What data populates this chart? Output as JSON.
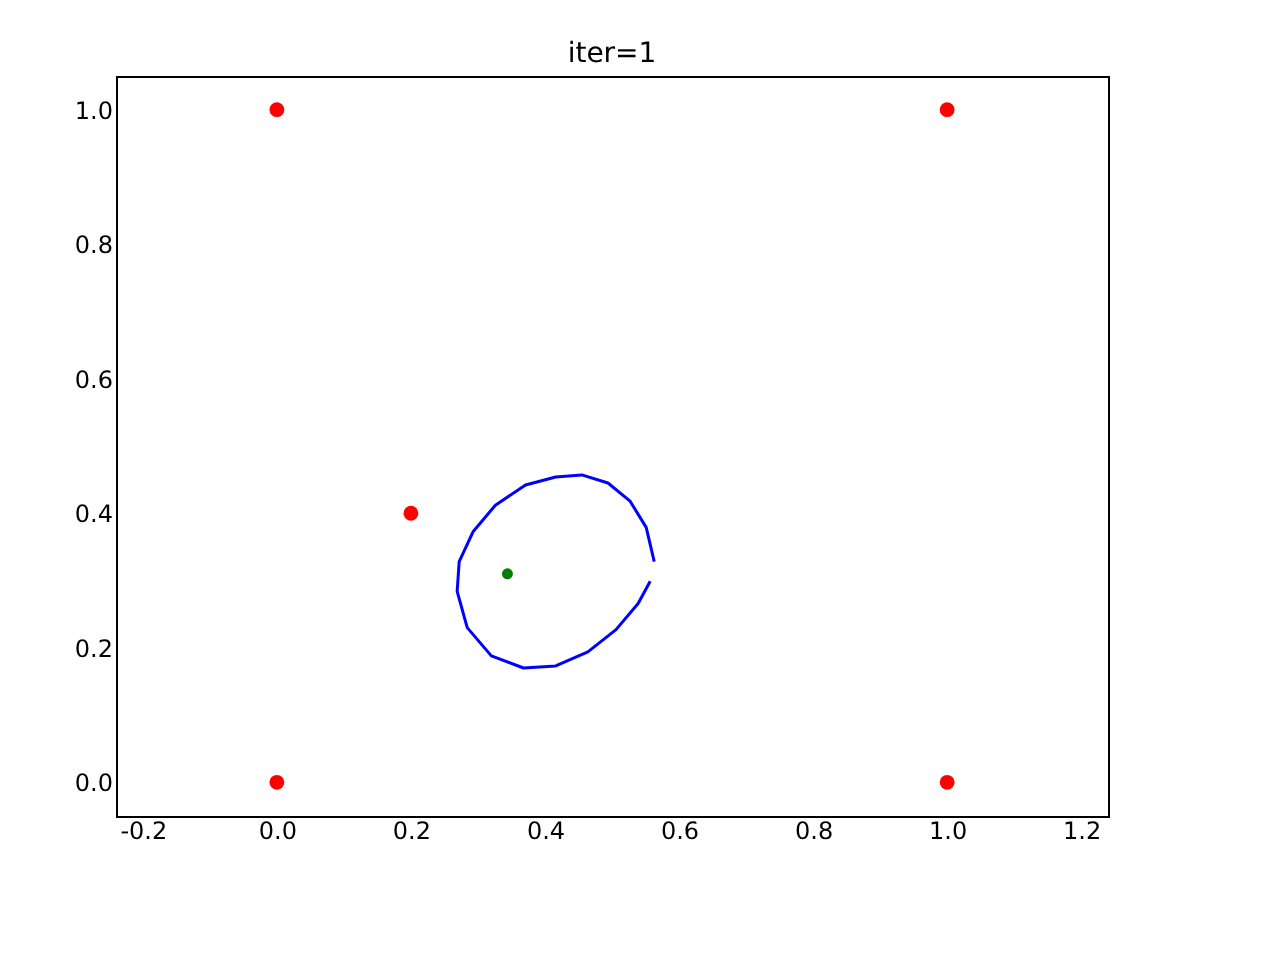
{
  "chart_data": {
    "type": "scatter",
    "title": "iter=1",
    "xlim": [
      -0.24,
      1.24
    ],
    "xticks": [
      -0.2,
      {
        "value": 0,
        "label": "0.0"
      },
      0.2,
      0.4,
      0.6,
      0.8,
      {
        "value": 1,
        "label": "1.0"
      },
      1.2
    ],
    "ylim": [
      -0.05,
      1.05
    ],
    "yticks": [
      {
        "value": 0,
        "label": "0.0"
      },
      0.2,
      0.4,
      0.6,
      0.8,
      {
        "value": 1,
        "label": "1.0"
      }
    ],
    "grid": false,
    "series": [
      {
        "type": "line",
        "color": "#0000ff",
        "marker": "none",
        "line_style": "solid",
        "x": [
          0.563,
          0.551,
          0.527,
          0.494,
          0.455,
          0.416,
          0.371,
          0.326,
          0.293,
          0.272,
          0.269,
          0.284,
          0.32,
          0.368,
          0.416,
          0.464,
          0.506,
          0.539,
          0.557
        ],
        "values": [
          0.328,
          0.379,
          0.418,
          0.445,
          0.457,
          0.454,
          0.442,
          0.412,
          0.373,
          0.328,
          0.284,
          0.23,
          0.188,
          0.17,
          0.173,
          0.194,
          0.227,
          0.266,
          0.299
        ]
      },
      {
        "color": "#ff0000",
        "marker": "circle",
        "x": [
          0.0,
          1.0,
          0.2,
          0.0,
          1.0
        ],
        "values": [
          1.0,
          1.0,
          0.4,
          0.0,
          0.0
        ]
      },
      {
        "color": "#008000",
        "marker": "circle",
        "x": [
          0.344
        ],
        "values": [
          0.31
        ]
      }
    ]
  }
}
